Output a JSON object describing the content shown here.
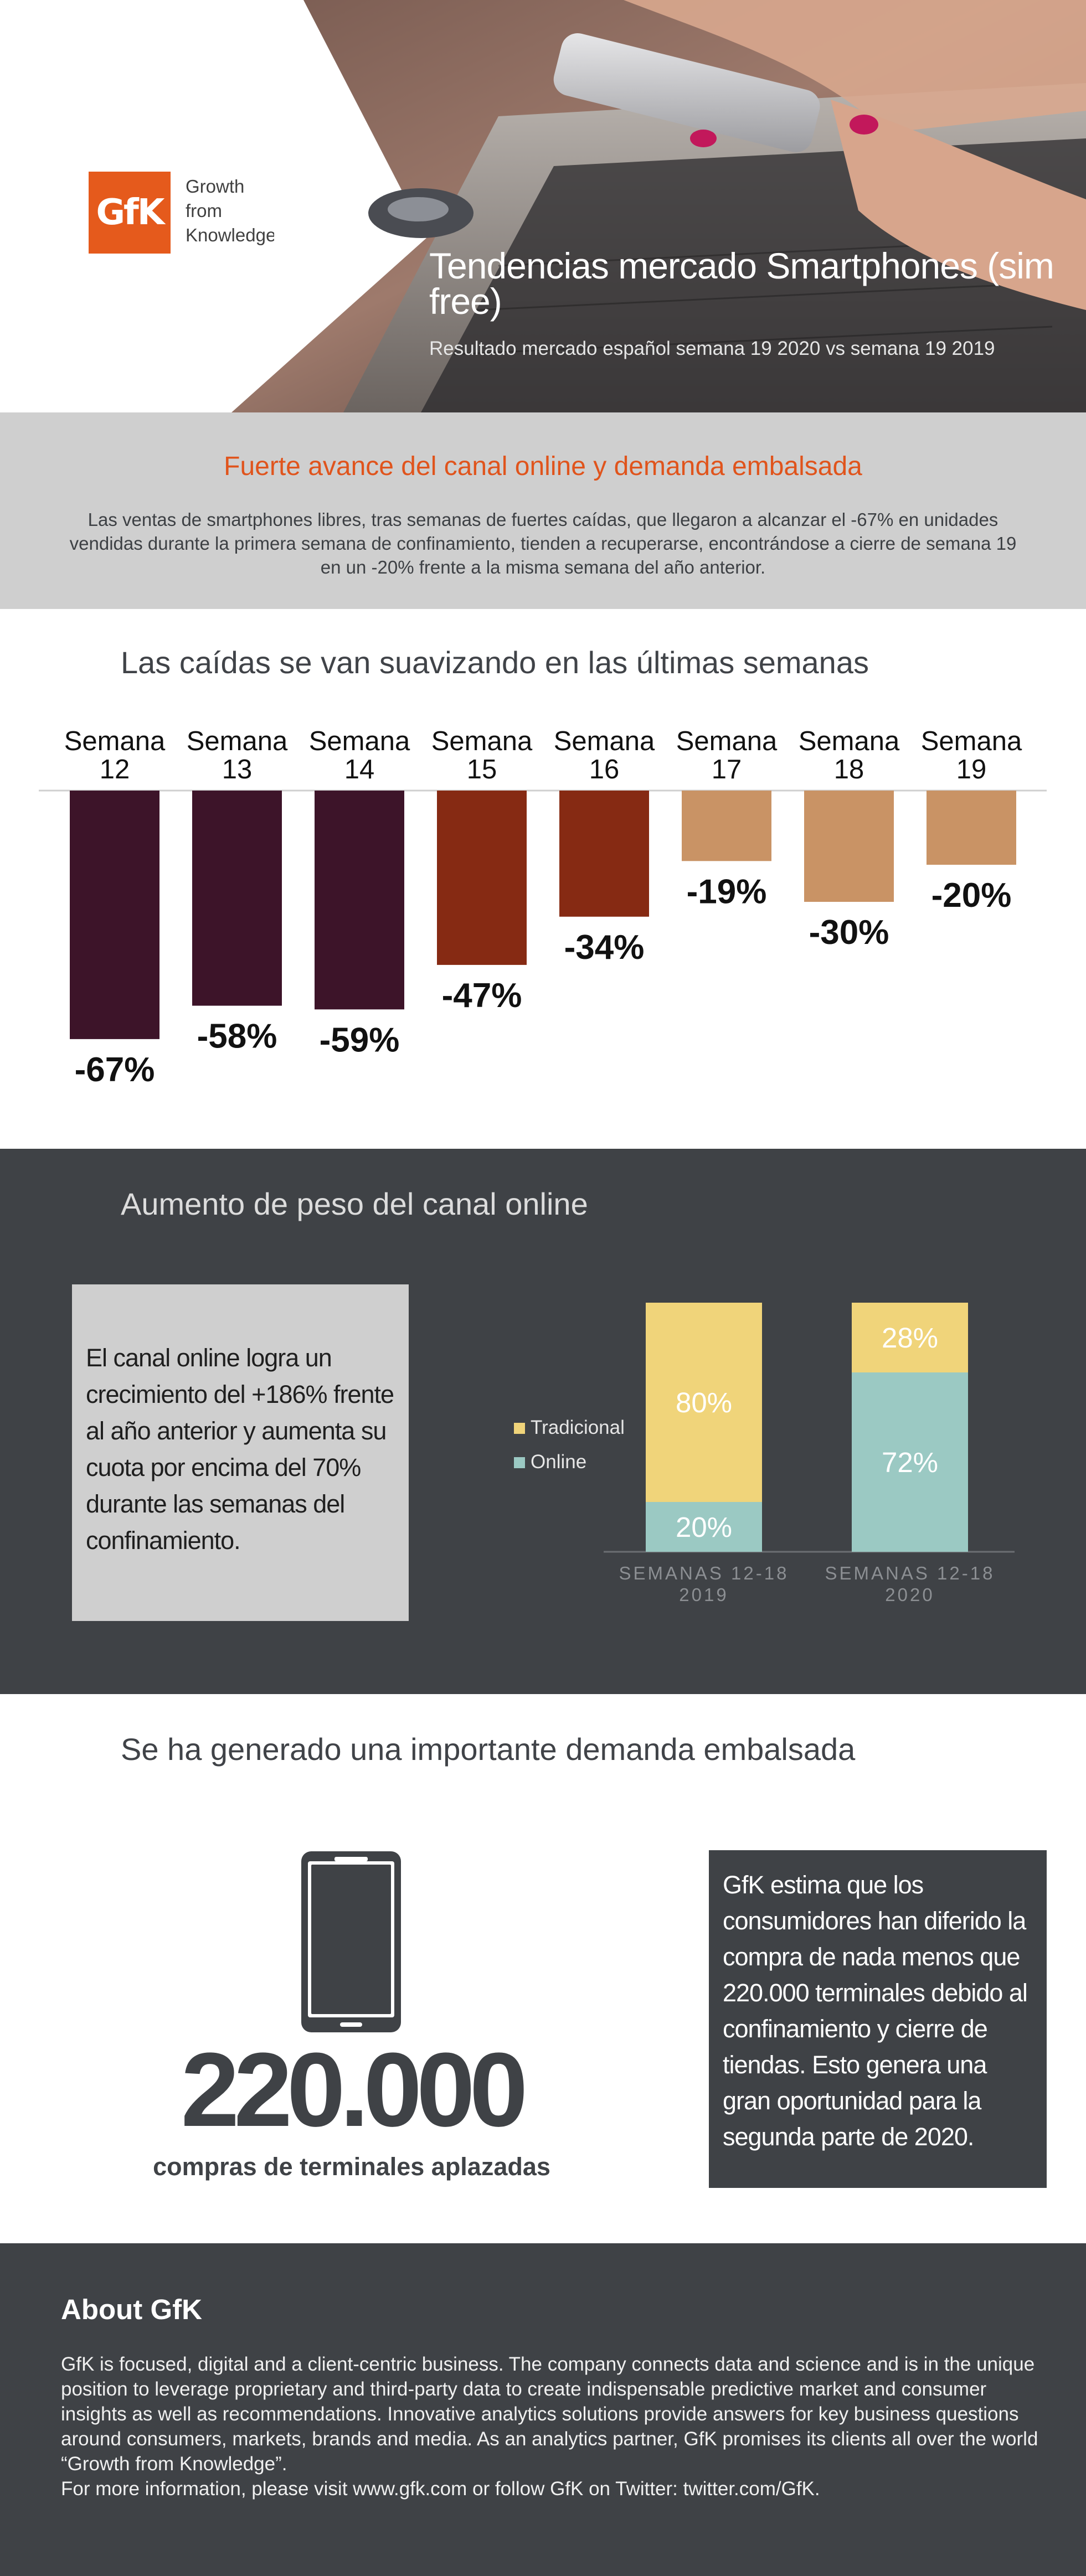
{
  "hero": {
    "logo_text": "GfK",
    "logo_tagline": [
      "Growth",
      "from",
      "Knowledge"
    ],
    "title": "Tendencias mercado Smartphones (sim free)",
    "subtitle": "Resultado mercado español semana 19 2020 vs semana 19 2019"
  },
  "intro": {
    "heading": "Fuerte avance del canal online y demanda embalsada",
    "text": "Las ventas de smartphones libres, tras semanas de fuertes caídas, que llegaron a alcanzar el -67% en unidades vendidas durante la primera semana de confinamiento, tienden a recuperarse, encontrándose a cierre de semana 19 en un -20% frente a la misma semana del año anterior."
  },
  "declines": {
    "heading": "Las caídas se van suavizando en las últimas semanas"
  },
  "online": {
    "heading": "Aumento de peso del canal online",
    "card_text": "El canal online logra un crecimiento del +186% frente al año anterior y aumenta su cuota por encima del 70% durante las semanas del confinamiento."
  },
  "demand": {
    "heading": "Se ha generado una importante demanda embalsada",
    "big_number": "220.000",
    "caption": "compras de terminales aplazadas",
    "card_text": "GfK estima que los consumidores han diferido la compra de nada menos que 220.000 terminales debido al confinamiento y cierre de tiendas. Esto genera una gran oportunidad para la segunda parte de 2020."
  },
  "about": {
    "heading": "About GfK",
    "text": "GfK is focused, digital and a client-centric business. The company connects data and science and is in the unique position to leverage proprietary and third-party data to create indispensable predictive market and consumer insights as well as recommendations. Innovative analytics solutions provide answers for key business questions around consumers, markets, brands and media. As an analytics partner, GfK promises its clients all over the world “Growth from Knowledge”.",
    "text2": "For more information, please visit www.gfk.com or follow GfK on Twitter: twitter.com/GfK."
  },
  "colors": {
    "brand_orange": "#e55a1c",
    "heading_orange": "#e0541c",
    "bar_dark": "#3d1429",
    "bar_rust": "#862a13",
    "bar_tan": "#c99365",
    "online_teal": "#9bc9c3",
    "traditional_yellow": "#f0d47a",
    "dark_band": "#3f4246"
  },
  "chart_data": [
    {
      "type": "bar",
      "categories": [
        "Semana 12",
        "Semana 13",
        "Semana 14",
        "Semana 15",
        "Semana 16",
        "Semana 17",
        "Semana 18",
        "Semana 19"
      ],
      "values": [
        -67,
        -58,
        -59,
        -47,
        -34,
        -19,
        -30,
        -20
      ],
      "labels": [
        "-67%",
        "-58%",
        "-59%",
        "-47%",
        "-34%",
        "-19%",
        "-30%",
        "-20%"
      ],
      "bar_colors": [
        "#3d1429",
        "#3d1429",
        "#3d1429",
        "#862a13",
        "#862a13",
        "#c99365",
        "#c99365",
        "#c99365"
      ],
      "unit": "%",
      "ylim": [
        -70,
        0
      ]
    },
    {
      "type": "bar",
      "stacked": true,
      "categories": [
        "SEMANAS 12-18 2019",
        "SEMANAS 12-18 2020"
      ],
      "series": [
        {
          "name": "Online",
          "values": [
            20,
            72
          ],
          "labels": [
            "20%",
            "72%"
          ],
          "color": "#9bc9c3"
        },
        {
          "name": "Tradicional",
          "values": [
            80,
            28
          ],
          "labels": [
            "80%",
            "28%"
          ],
          "color": "#f0d47a"
        }
      ],
      "unit": "%",
      "ylim": [
        0,
        100
      ]
    }
  ]
}
